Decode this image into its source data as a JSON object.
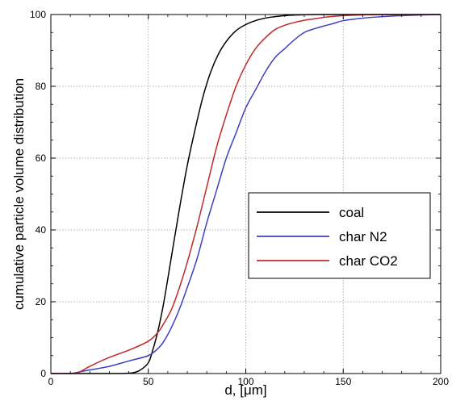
{
  "chart_data": {
    "type": "line",
    "title": "",
    "xlabel": "d, [μm]",
    "ylabel": "cumulative particle volume distribution",
    "xlim": [
      0,
      200
    ],
    "ylim": [
      0,
      100
    ],
    "xticks": [
      "0",
      "50",
      "100",
      "150",
      "200"
    ],
    "yticks": [
      "0",
      "20",
      "40",
      "60",
      "80",
      "100"
    ],
    "grid": true,
    "legend_position": "center-right",
    "series": [
      {
        "name": "coal",
        "color": "#000000",
        "x": [
          0,
          20,
          35,
          42,
          46,
          50,
          52,
          55,
          58,
          62,
          66,
          70,
          74,
          78,
          82,
          86,
          90,
          95,
          100,
          105,
          110,
          115,
          120,
          125,
          130,
          135,
          140,
          145,
          150,
          160,
          170,
          180,
          200
        ],
        "y": [
          0,
          0,
          0,
          0.2,
          1,
          3,
          6,
          12,
          20,
          33,
          46,
          58,
          68,
          77,
          84,
          89,
          92.5,
          95.5,
          97.2,
          98.3,
          99,
          99.4,
          99.7,
          99.85,
          99.95,
          100,
          100,
          100,
          100,
          100,
          100,
          100,
          100
        ]
      },
      {
        "name": "char N2",
        "color": "#3f3fbf",
        "x": [
          0,
          10,
          15,
          20,
          30,
          40,
          50,
          55,
          58,
          62,
          66,
          70,
          75,
          80,
          85,
          90,
          95,
          100,
          105,
          110,
          115,
          120,
          125,
          130,
          135,
          140,
          145,
          150,
          160,
          170,
          180,
          200
        ],
        "y": [
          0,
          0,
          0.5,
          1,
          2,
          3.5,
          5,
          7,
          9,
          13,
          18,
          24,
          32,
          42,
          51,
          60,
          67,
          74,
          79,
          84,
          88,
          90.5,
          93,
          95,
          96,
          96.8,
          97.5,
          98.3,
          99,
          99.4,
          99.7,
          100
        ]
      },
      {
        "name": "char CO2",
        "color": "#c0282a",
        "x": [
          0,
          12,
          15,
          20,
          30,
          40,
          50,
          55,
          58,
          62,
          66,
          70,
          75,
          80,
          85,
          90,
          95,
          100,
          105,
          110,
          115,
          120,
          125,
          130,
          135,
          140,
          145,
          150,
          160,
          170,
          200
        ],
        "y": [
          0,
          0,
          0.5,
          2,
          4.5,
          6.5,
          9,
          11.5,
          14,
          18,
          24,
          31,
          41,
          52,
          63,
          72,
          80,
          86,
          90.5,
          93.5,
          95.8,
          97,
          97.8,
          98.4,
          98.8,
          99.2,
          99.5,
          99.7,
          99.9,
          100,
          100
        ]
      }
    ]
  }
}
